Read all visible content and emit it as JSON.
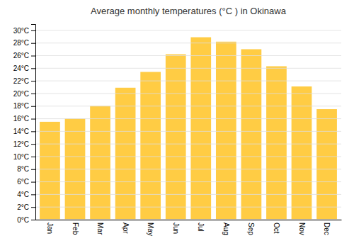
{
  "chart_data": {
    "type": "bar",
    "title": "Average monthly temperatures (°C ) in Okinawa",
    "categories": [
      "Jan",
      "Feb",
      "Mar",
      "Apr",
      "May",
      "Jun",
      "Jul",
      "Aug",
      "Sep",
      "Oct",
      "Nov",
      "Dec"
    ],
    "values": [
      15.6,
      16.1,
      18.1,
      21.0,
      23.5,
      26.3,
      29.0,
      28.3,
      27.1,
      24.4,
      21.2,
      17.6
    ],
    "color": "#FFCC44",
    "ylim": [
      0,
      31
    ],
    "yticks": [
      {
        "value": 0,
        "label": "0°C"
      },
      {
        "value": 2,
        "label": "2°C"
      },
      {
        "value": 4,
        "label": "4°C"
      },
      {
        "value": 6,
        "label": "6°C"
      },
      {
        "value": 8,
        "label": "8°C"
      },
      {
        "value": 10,
        "label": "10°C"
      },
      {
        "value": 12,
        "label": "12°C"
      },
      {
        "value": 14,
        "label": "14°C"
      },
      {
        "value": 16,
        "label": "16°C"
      },
      {
        "value": 18,
        "label": "18°C"
      },
      {
        "value": 20,
        "label": "20°C"
      },
      {
        "value": 22,
        "label": "22°C"
      },
      {
        "value": 24,
        "label": "24°C"
      },
      {
        "value": 26,
        "label": "26°C"
      },
      {
        "value": 28,
        "label": "28°C"
      },
      {
        "value": 30,
        "label": "30°C"
      }
    ],
    "grid": true
  }
}
